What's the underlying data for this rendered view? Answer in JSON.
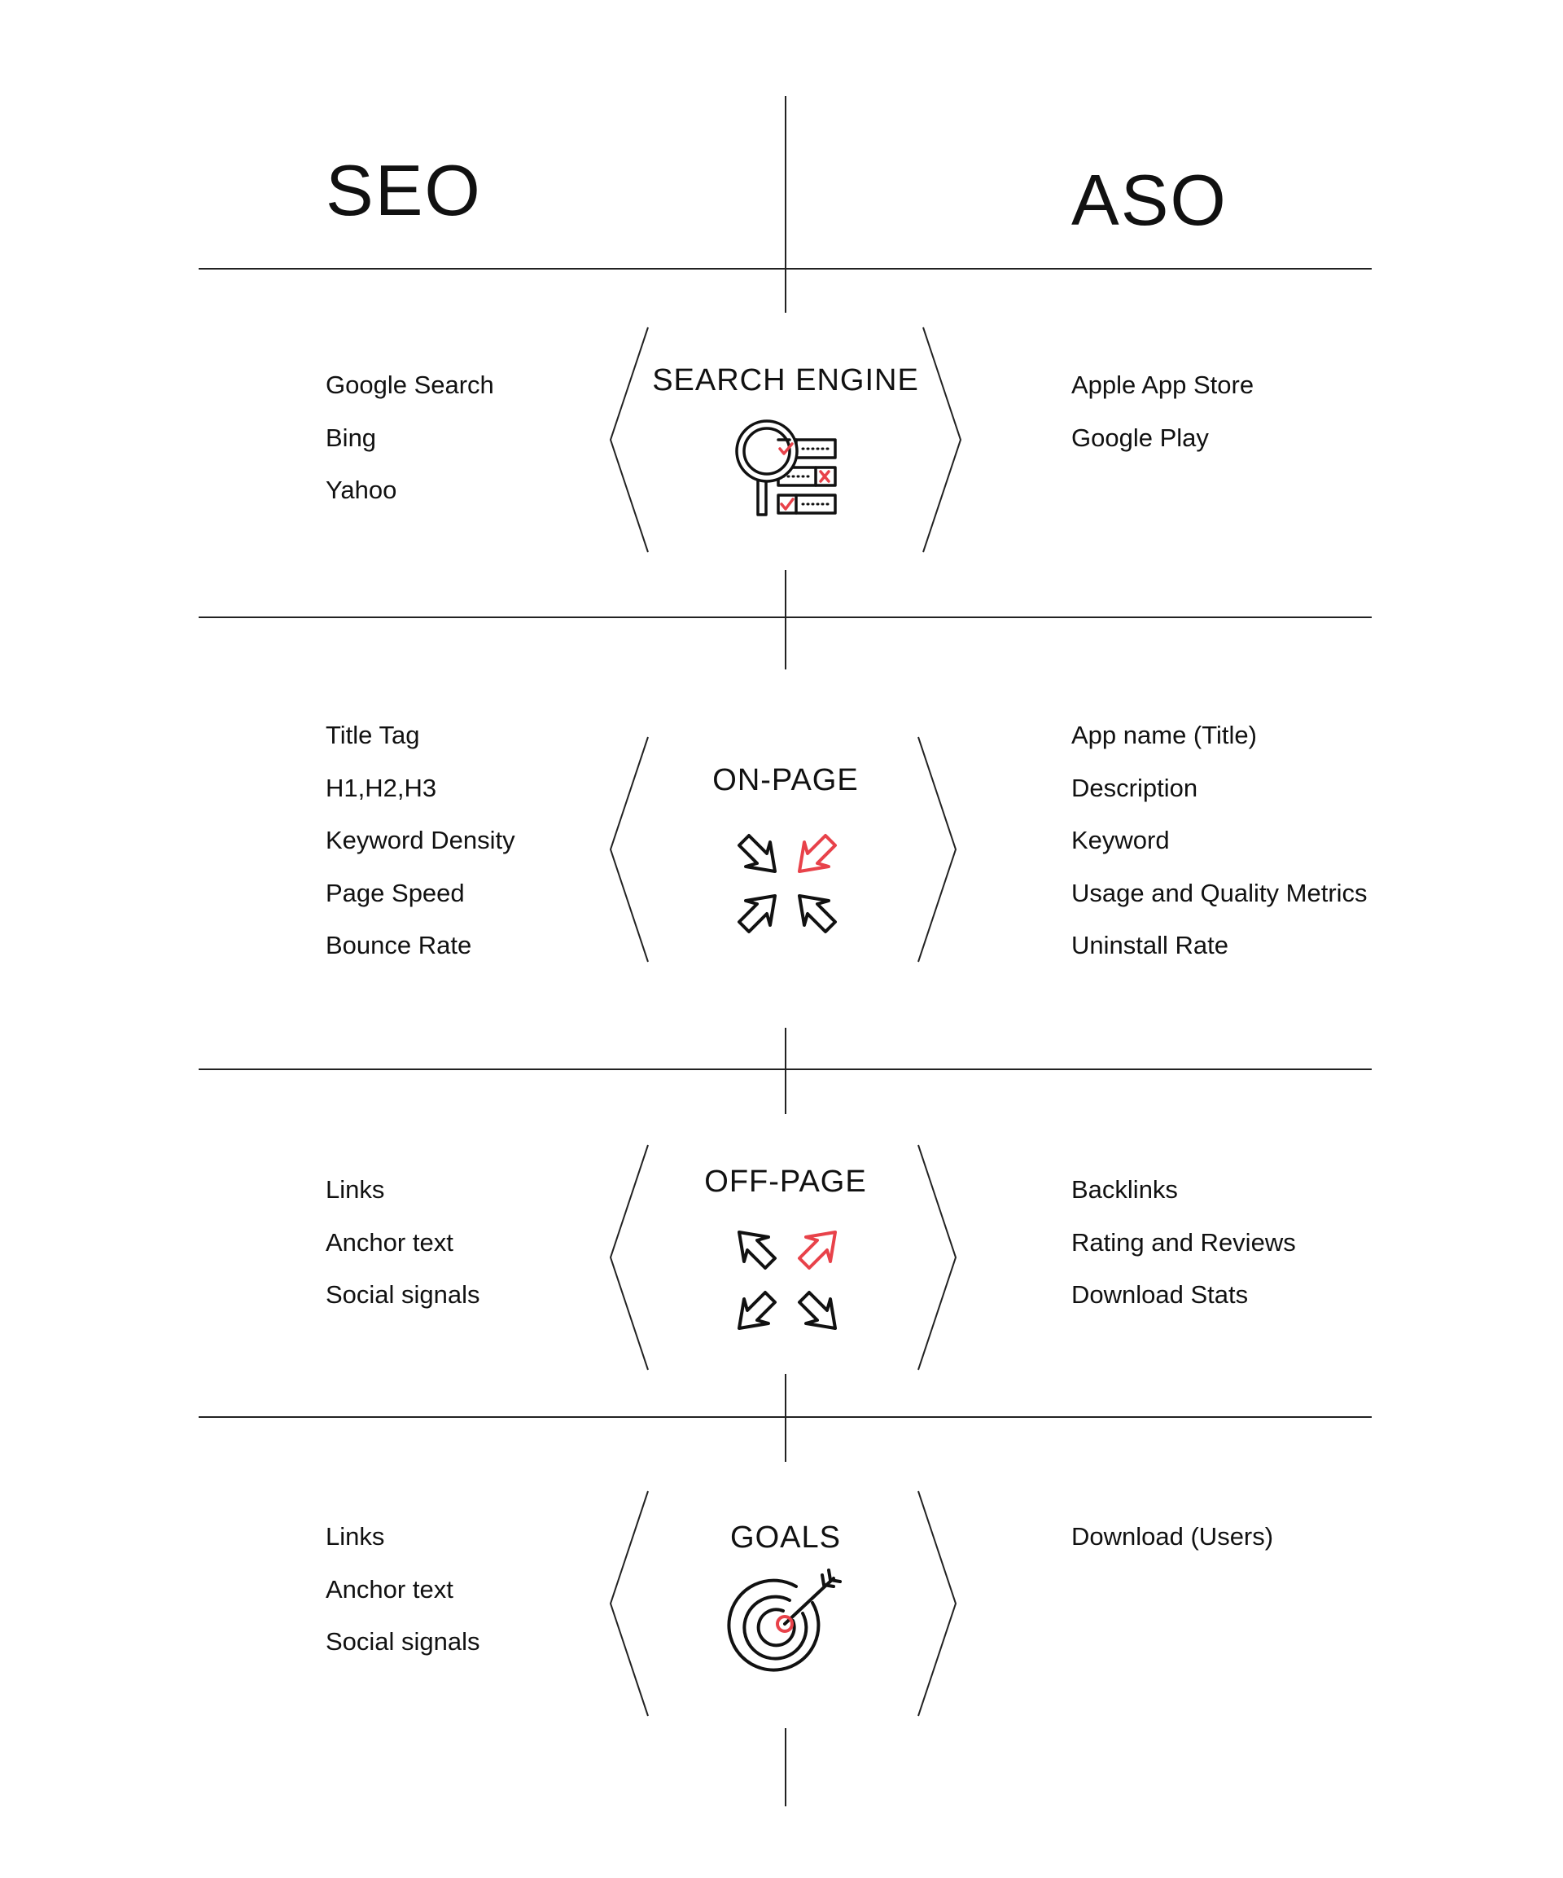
{
  "columns": {
    "left_title": "SEO",
    "right_title": "ASO"
  },
  "colors": {
    "line": "#222222",
    "text": "#111111",
    "accent": "#e8424a"
  },
  "sections": [
    {
      "label": "SEARCH ENGINE",
      "icon": "search-magnifier-checklist-icon",
      "left_items": [
        "Google Search",
        "Bing",
        "Yahoo"
      ],
      "right_items": [
        "Apple App Store",
        "Google Play"
      ]
    },
    {
      "label": "ON-PAGE",
      "icon": "arrows-inward-icon",
      "left_items": [
        "Title Tag",
        "H1,H2,H3",
        "Keyword Density",
        "Page Speed",
        "Bounce Rate"
      ],
      "right_items": [
        "App name (Title)",
        "Description",
        "Keyword",
        "Usage and Quality Metrics",
        "Uninstall Rate"
      ]
    },
    {
      "label": "OFF-PAGE",
      "icon": "arrows-outward-icon",
      "left_items": [
        "Links",
        "Anchor text",
        "Social signals"
      ],
      "right_items": [
        "Backlinks",
        "Rating and Reviews",
        "Download Stats"
      ]
    },
    {
      "label": "GOALS",
      "icon": "target-arrow-icon",
      "left_items": [
        "Links",
        "Anchor text",
        "Social signals"
      ],
      "right_items": [
        "Download (Users)"
      ]
    }
  ]
}
